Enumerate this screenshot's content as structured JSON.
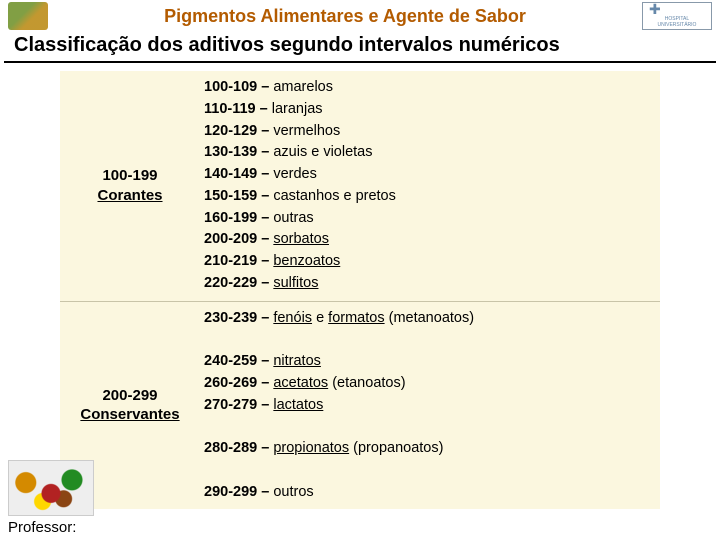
{
  "header": {
    "title": "Pigmentos Alimentares e Agente de Sabor",
    "logo_right_caption": "HOSPITAL UNIVERSITÁRIO"
  },
  "subtitle": "Classificação dos aditivos segundo intervalos numéricos",
  "colors": {
    "header_title": "#b35b00",
    "cell_bg": "#fbf7df",
    "row_border": "#c8c4a8"
  },
  "categories": [
    {
      "range": "100-199",
      "label": "Corantes",
      "items": [
        {
          "range": "100-109",
          "text": "amarelos",
          "u": false
        },
        {
          "range": "110-119",
          "text": "laranjas",
          "u": false
        },
        {
          "range": "120-129",
          "text": "vermelhos",
          "u": false
        },
        {
          "range": "130-139",
          "text": "azuis e violetas",
          "u": false
        },
        {
          "range": "140-149",
          "text": "verdes",
          "u": false
        },
        {
          "range": "150-159",
          "text": "castanhos e pretos",
          "u": false
        },
        {
          "range": "160-199",
          "text": "outras",
          "u": false
        },
        {
          "range": "200-209",
          "text": "sorbatos",
          "u": true
        },
        {
          "range": "210-219",
          "text": "benzoatos",
          "u": true
        },
        {
          "range": "220-229",
          "text": "sulfitos",
          "u": true
        }
      ]
    },
    {
      "range": "200-299",
      "label": "Conservantes",
      "items": [
        {
          "range": "230-239",
          "text_parts": [
            {
              "t": "fenóis",
              "u": true
            },
            {
              "t": " e ",
              "u": false
            },
            {
              "t": "formatos",
              "u": true
            },
            {
              "t": " (metanoatos)",
              "u": false
            }
          ]
        },
        {
          "spacer": true
        },
        {
          "range": "240-259",
          "text": "nitratos",
          "u": true
        },
        {
          "range": "260-269",
          "text_parts": [
            {
              "t": "acetatos",
              "u": true
            },
            {
              "t": " (etanoatos)",
              "u": false
            }
          ]
        },
        {
          "range": "270-279",
          "text": "lactatos",
          "u": true
        },
        {
          "spacer": true
        },
        {
          "range": "280-289",
          "text_parts": [
            {
              "t": "propionatos",
              "u": true
            },
            {
              "t": " (propanoatos)",
              "u": false
            }
          ]
        },
        {
          "spacer": true
        },
        {
          "range": "290-299",
          "text": "outros",
          "u": false
        }
      ]
    }
  ],
  "footer": "Professor:"
}
